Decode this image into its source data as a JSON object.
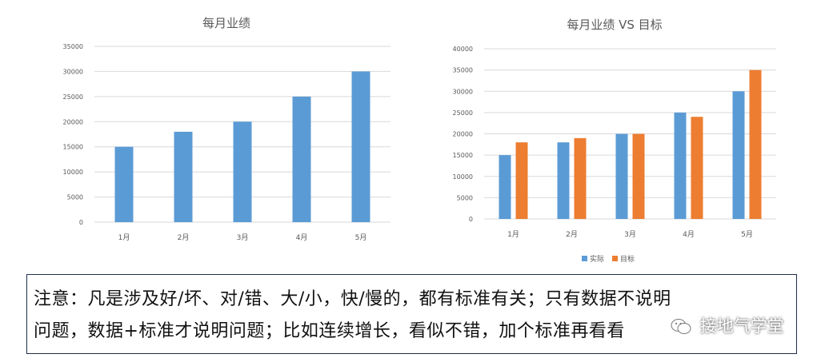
{
  "chart_data": [
    {
      "type": "bar",
      "title": "每月业绩",
      "categories": [
        "1月",
        "2月",
        "3月",
        "4月",
        "5月"
      ],
      "series": [
        {
          "values": [
            15000,
            18000,
            20000,
            25000,
            30000
          ],
          "color": "#5b9bd5"
        }
      ],
      "ylim": [
        0,
        35000
      ],
      "yticks": [
        0,
        5000,
        10000,
        15000,
        20000,
        25000,
        30000,
        35000
      ],
      "grid": true,
      "legend": "none"
    },
    {
      "type": "bar",
      "title": "每月业绩 VS 目标",
      "categories": [
        "1月",
        "2月",
        "3月",
        "4月",
        "5月"
      ],
      "series": [
        {
          "name": "实际",
          "values": [
            15000,
            18000,
            20000,
            25000,
            30000
          ],
          "color": "#5b9bd5"
        },
        {
          "name": "目标",
          "values": [
            18000,
            19000,
            20000,
            24000,
            35000
          ],
          "color": "#ed7d31"
        }
      ],
      "ylim": [
        0,
        40000
      ],
      "yticks": [
        0,
        5000,
        10000,
        15000,
        20000,
        25000,
        30000,
        35000,
        40000
      ],
      "grid": true,
      "legend": "bottom"
    }
  ],
  "note": {
    "line1": "注意：凡是涉及好/坏、对/错、大/小，快/慢的，都有标准有关；只有数据不说明",
    "line2": "问题，数据+标准才说明问题；比如连续增长，看似不错，加个标准再看看"
  },
  "watermark": {
    "text": "接地气学堂",
    "icon": "wechat-logo-icon"
  }
}
